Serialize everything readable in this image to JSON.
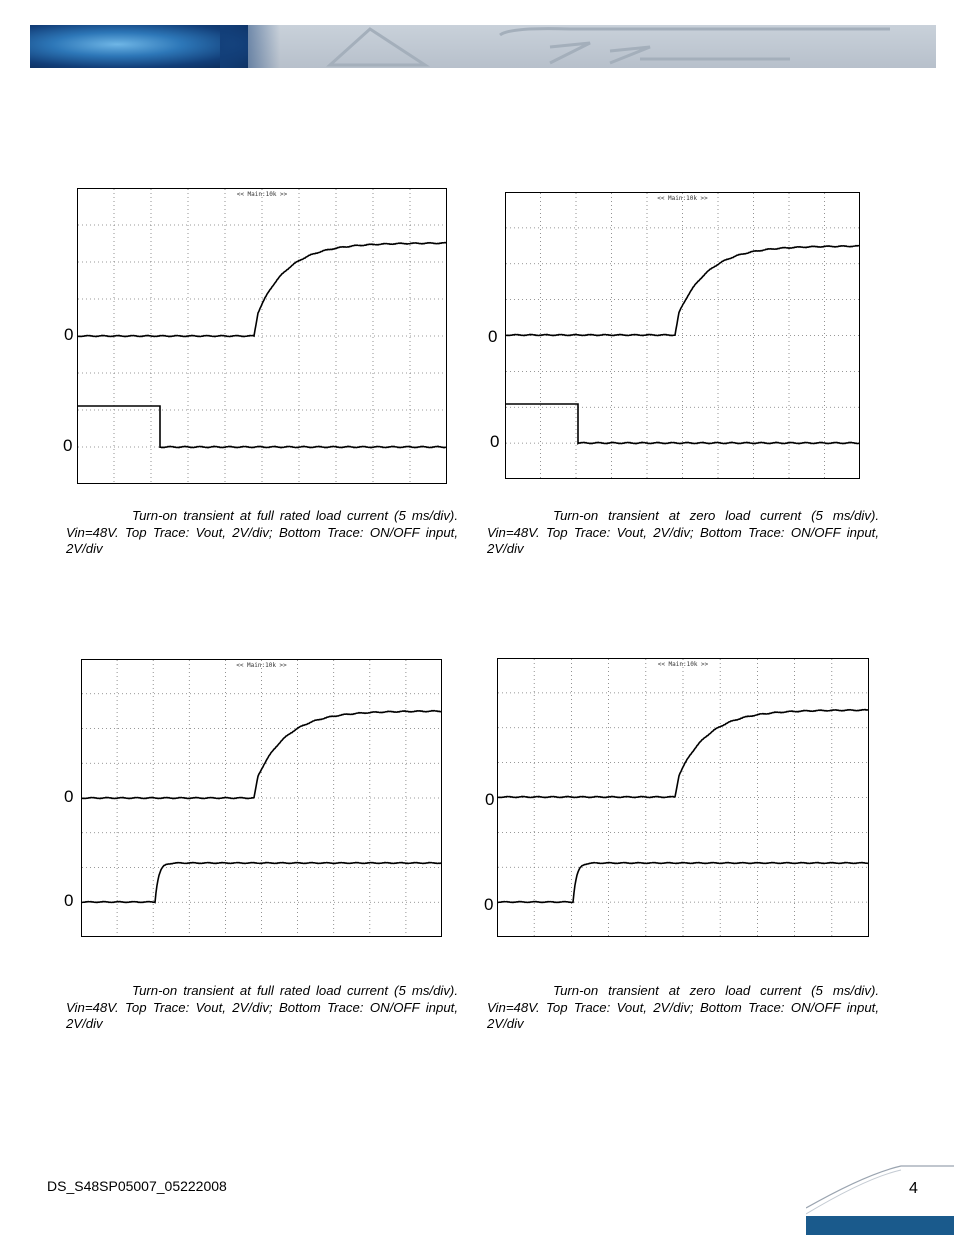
{
  "figures": [
    {
      "id": "fig1",
      "screen_label": "<< Main:10k >>",
      "top_zero_label": "0",
      "bottom_zero_label": "0",
      "caption": "Turn-on transient at full rated load current (5 ms/div). Vin=48V. Top Trace: Vout, 2V/div; Bottom Trace: ON/OFF input, 2V/div"
    },
    {
      "id": "fig2",
      "screen_label": "<< Main:10k >>",
      "top_zero_label": "0",
      "bottom_zero_label": "0",
      "caption": "Turn-on transient at zero load current (5 ms/div). Vin=48V. Top Trace: Vout, 2V/div; Bottom Trace: ON/OFF input, 2V/div"
    },
    {
      "id": "fig3",
      "screen_label": "<< Main:10k >>",
      "top_zero_label": "0",
      "bottom_zero_label": "0",
      "caption": "Turn-on transient at full rated load current (5 ms/div). Vin=48V. Top Trace: Vout, 2V/div; Bottom Trace: ON/OFF input, 2V/div"
    },
    {
      "id": "fig4",
      "screen_label": "<< Main:10k >>",
      "top_zero_label": "0",
      "bottom_zero_label": "0",
      "caption": "Turn-on transient at zero load current (5 ms/div). Vin=48V. Top Trace: Vout, 2V/div; Bottom Trace: ON/OFF input, 2V/div"
    }
  ],
  "footer": {
    "doc_id": "DS_S48SP05007_05222008",
    "page_number": "4"
  },
  "colors": {
    "footer_bar": "#1a5a8c",
    "banner_blue": "#2d77b8"
  }
}
